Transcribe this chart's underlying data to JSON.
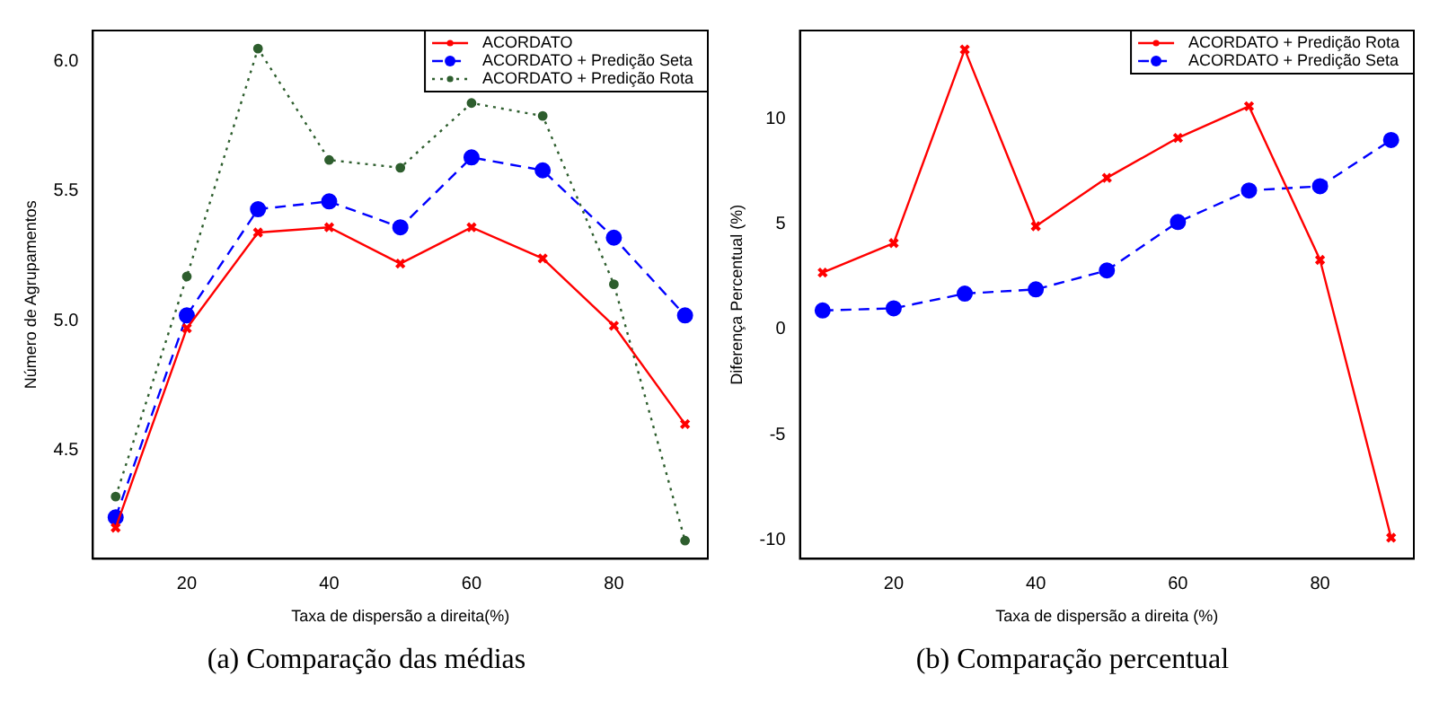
{
  "chart_data": [
    {
      "type": "line",
      "xlabel": "Taxa de dispersão a direita(%)",
      "ylabel": "Número de Agrupamentos",
      "x": [
        10,
        20,
        30,
        40,
        50,
        60,
        70,
        80,
        90
      ],
      "xlim": [
        6.8,
        93.2
      ],
      "xticks": [
        20,
        40,
        60,
        80
      ],
      "ylim": [
        4.08,
        6.12
      ],
      "yticks": [
        4.5,
        {
          "value": 5,
          "label": "5.0"
        },
        5.5,
        {
          "value": 6,
          "label": "6.0"
        }
      ],
      "grid": false,
      "legend": "top right",
      "annotations": [
        "(a)  Comparação das médias"
      ],
      "series": [
        {
          "name": "ACORDATO",
          "color": "#ff0000",
          "marker": "cross",
          "line_style": "solid",
          "values": [
            4.2,
            4.97,
            5.34,
            5.36,
            5.22,
            5.36,
            5.24,
            4.98,
            4.6
          ]
        },
        {
          "name": "ACORDATO + Predição Seta",
          "color": "#0000ff",
          "marker": "circle",
          "line_style": "dashed",
          "values": [
            4.24,
            5.02,
            5.43,
            5.46,
            5.36,
            5.63,
            5.58,
            5.32,
            5.02
          ]
        },
        {
          "name": "ACORDATO + Predição Rota",
          "color": "#2e5e2e",
          "marker": "circle",
          "line_style": "dotted",
          "values": [
            4.32,
            5.17,
            6.05,
            5.62,
            5.59,
            5.84,
            5.79,
            5.14,
            4.15
          ]
        }
      ]
    },
    {
      "type": "line",
      "xlabel": "Taxa de dispersão a direita (%)",
      "ylabel": "Diferença Percentual (%)",
      "x": [
        10,
        20,
        30,
        40,
        50,
        60,
        70,
        80,
        90
      ],
      "xlim": [
        6.8,
        93.2
      ],
      "xticks": [
        20,
        40,
        60,
        80
      ],
      "ylim": [
        -10.9,
        14.2
      ],
      "yticks": [
        -10,
        -5,
        0,
        5,
        10
      ],
      "grid": false,
      "legend": "top right",
      "annotations": [
        "(b)  Comparação percentual"
      ],
      "series": [
        {
          "name": "ACORDATO + Predição Rota",
          "color": "#ff0000",
          "marker": "cross",
          "line_style": "solid",
          "values": [
            2.7,
            4.1,
            13.3,
            4.9,
            7.2,
            9.1,
            10.6,
            3.3,
            -9.9
          ]
        },
        {
          "name": "ACORDATO + Predição Seta",
          "color": "#0000ff",
          "marker": "circle",
          "line_style": "dashed",
          "values": [
            0.9,
            1.0,
            1.7,
            1.9,
            2.8,
            5.1,
            6.6,
            6.8,
            9.0
          ]
        }
      ]
    }
  ]
}
